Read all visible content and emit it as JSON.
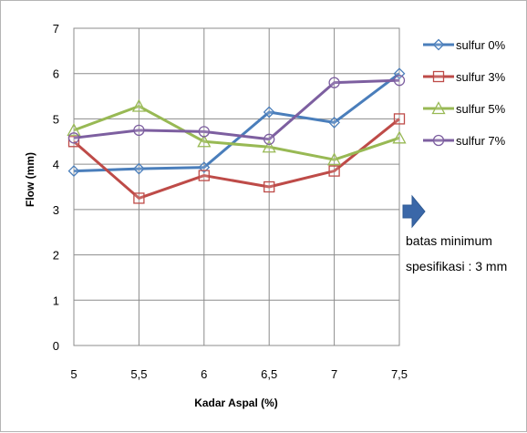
{
  "chart_data": {
    "type": "line",
    "xlabel": "Flow  (mm)",
    "x_axis_title": "Kadar Aspal (%)",
    "x": [
      5,
      5.5,
      6,
      6.5,
      7,
      7.5
    ],
    "x_tick_labels": [
      "5",
      "5,5",
      "6",
      "6,5",
      "7",
      "7,5"
    ],
    "ylim": [
      0,
      7
    ],
    "y_ticks": [
      0,
      1,
      2,
      3,
      4,
      5,
      6,
      7
    ],
    "grid": true,
    "legend_position": "right",
    "series": [
      {
        "name": "sulfur 0%",
        "color": "#4a7ebb",
        "marker": "diamond",
        "values": [
          3.85,
          3.9,
          3.93,
          5.15,
          4.92,
          6.0
        ]
      },
      {
        "name": "sulfur 3%",
        "color": "#be4b48",
        "marker": "square",
        "values": [
          4.5,
          3.25,
          3.75,
          3.5,
          3.85,
          5.0
        ]
      },
      {
        "name": "sulfur 5%",
        "color": "#98b954",
        "marker": "triangle",
        "values": [
          4.75,
          5.28,
          4.5,
          4.38,
          4.1,
          4.58
        ]
      },
      {
        "name": "sulfur 7%",
        "color": "#7d5fa0",
        "marker": "circle",
        "values": [
          4.58,
          4.75,
          4.72,
          4.55,
          5.8,
          5.85
        ]
      }
    ],
    "annotation": {
      "line1": "batas minimum",
      "line2": "spesifikasi : 3 mm",
      "arrow_color": "#3a67a8"
    }
  }
}
